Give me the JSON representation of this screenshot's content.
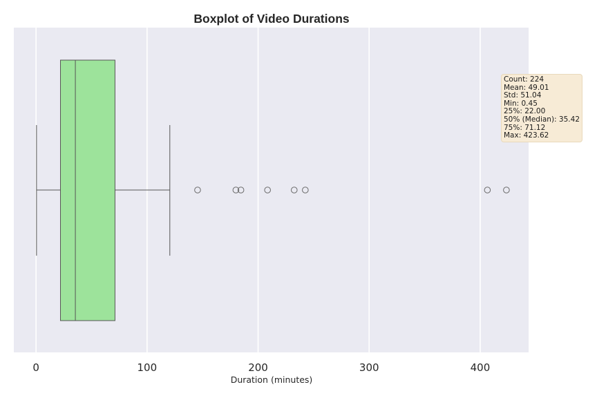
{
  "chart_data": {
    "type": "boxplot",
    "title": "Boxplot of Video Durations",
    "xlabel": "Duration (minutes)",
    "ylabel": "",
    "xlim": [
      -20,
      443.6
    ],
    "xticks": [
      0,
      100,
      200,
      300,
      400
    ],
    "tick_labels": [
      "0",
      "100",
      "200",
      "300",
      "400"
    ],
    "grid": true,
    "box": {
      "q1": 22.0,
      "median": 35.42,
      "q3": 71.12,
      "whisker_low": 0.45,
      "whisker_high": 120.5,
      "fill_color": "#9de39b"
    },
    "outliers": [
      145.5,
      180.0,
      184.5,
      208.5,
      232.5,
      242.5,
      406.5,
      423.62
    ],
    "stats_text": [
      "Count: 224",
      "Mean: 49.01",
      "Std: 51.04",
      "Min: 0.45",
      "25%: 22.00",
      "50% (Median): 35.42",
      "75%: 71.12",
      "Max: 423.62"
    ]
  },
  "colors": {
    "plot_background": "#eaeaf2",
    "grid": "#ffffff",
    "stats_box_background": "#f7ebd6"
  }
}
